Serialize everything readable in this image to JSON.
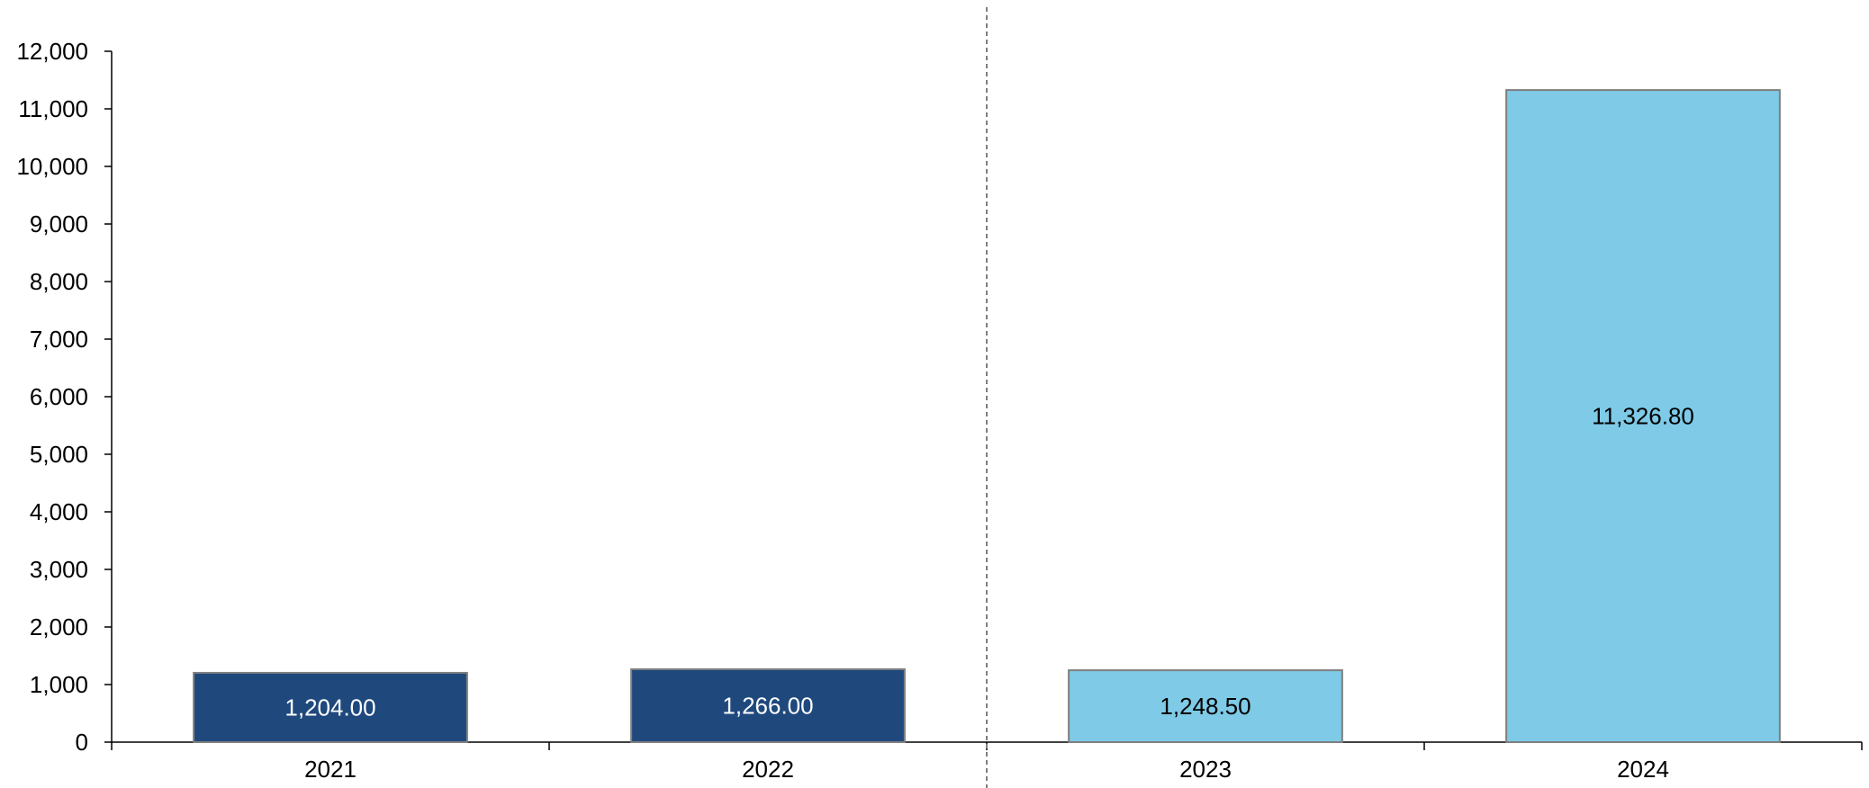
{
  "chart_data": {
    "type": "bar",
    "title": "",
    "xlabel": "",
    "ylabel": "",
    "categories": [
      "2021",
      "2022",
      "2023",
      "2024"
    ],
    "values": [
      1204.0,
      1266.0,
      1248.5,
      11326.8
    ],
    "data_labels": [
      "1,204.00",
      "1,266.00",
      "1,248.50",
      "11,326.80"
    ],
    "bar_colors": [
      "#1f497d",
      "#1f497d",
      "#7ecae7",
      "#7ecae7"
    ],
    "data_label_colors": [
      "#ffffff",
      "#ffffff",
      "#000000",
      "#000000"
    ],
    "bar_edge_color": "#7f7f7f",
    "ylim": [
      0,
      12000
    ],
    "yticks": [
      0,
      1000,
      2000,
      3000,
      4000,
      5000,
      6000,
      7000,
      8000,
      9000,
      10000,
      11000,
      12000
    ],
    "ytick_labels": [
      "0",
      "1,000",
      "2,000",
      "3,000",
      "4,000",
      "5,000",
      "6,000",
      "7,000",
      "8,000",
      "9,000",
      "10,000",
      "11,000",
      "12,000"
    ],
    "grid": false,
    "legend": "none",
    "separator": {
      "style": "dashed",
      "between_categories": [
        "2022",
        "2023"
      ],
      "color": "#7f7f7f"
    }
  }
}
